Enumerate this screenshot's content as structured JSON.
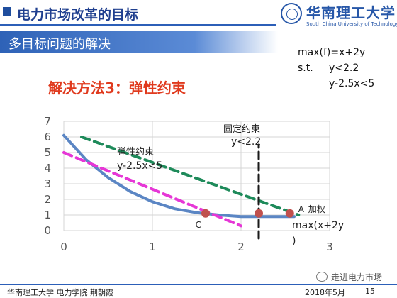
{
  "header": {
    "title": "电力市场改革的目标",
    "logo_cn": "华南理工大学",
    "logo_en": "South China University of Technology"
  },
  "subtitle": "多目标问题的解决",
  "formula": {
    "line1": "max(f)=x+2y",
    "line2_prefix": "s.t.",
    "line2_rest": "y<2.2",
    "line3": "y-2.5x<5"
  },
  "method_title": "解决方法3：弹性约束",
  "chart_data": {
    "type": "line",
    "xlim": [
      0,
      3
    ],
    "ylim": [
      0,
      7
    ],
    "x_ticks": [
      "0",
      "1",
      "2",
      "3"
    ],
    "y_ticks": [
      "0",
      "1",
      "2",
      "3",
      "4",
      "5",
      "6",
      "7"
    ],
    "grid": true,
    "colors": {
      "curve": "#5b86c4",
      "objective": "#1e8a5a",
      "elastic": "#e637d6",
      "fixed": "#1a1a1a",
      "points": "#c0504d"
    },
    "series": [
      {
        "key": "curve",
        "x": [
          0,
          0.25,
          0.5,
          0.75,
          1.0,
          1.25,
          1.5,
          1.75,
          2.0,
          2.5,
          2.6
        ],
        "y": [
          6.1,
          4.55,
          3.4,
          2.5,
          1.85,
          1.4,
          1.15,
          1.0,
          0.9,
          0.9,
          0.9
        ]
      },
      {
        "key": "objective",
        "x": [
          0.2,
          2.65
        ],
        "y": [
          6.0,
          1.0
        ]
      },
      {
        "key": "elastic",
        "x": [
          0,
          2.0
        ],
        "y": [
          5.0,
          0.3
        ]
      },
      {
        "key": "fixed",
        "x": [
          2.2,
          2.2
        ],
        "y": [
          -0.5,
          5.5
        ]
      }
    ],
    "points": [
      {
        "label": "C",
        "x": 1.6,
        "y": 1.1
      },
      {
        "label": "",
        "x": 2.2,
        "y": 1.1
      },
      {
        "label": "A",
        "x": 2.55,
        "y": 1.1
      }
    ],
    "annotations": {
      "elastic_title": "弹性约束",
      "elastic_eq": "y-2.5x<5",
      "fixed_title": "固定约束",
      "fixed_eq": "y<2.2",
      "a_suffix": "加权",
      "a_max_line1": "max(x+2y",
      "a_max_line2": ")"
    }
  },
  "footer": {
    "left": "华南理工大学 电力学院  荆朝霞",
    "date": "2018年5月",
    "page": "15",
    "watermark": "走进电力市场"
  }
}
